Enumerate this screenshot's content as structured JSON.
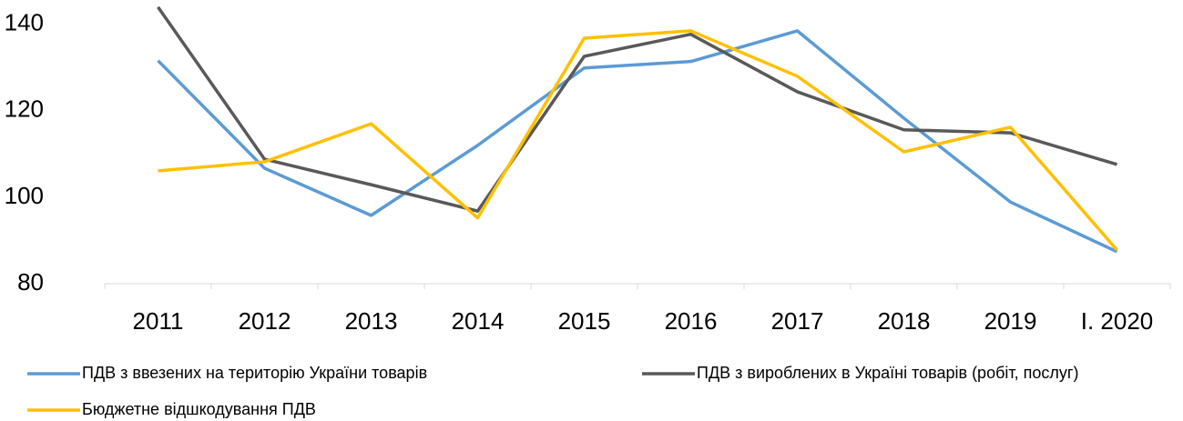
{
  "chart_data": {
    "type": "line",
    "categories": [
      "2011",
      "2012",
      "2013",
      "2014",
      "2015",
      "2016",
      "2017",
      "2018",
      "2019",
      "I. 2020"
    ],
    "series": [
      {
        "name": "ПДВ з ввезених на територію України товарів",
        "color": "#5b9bd5",
        "values": [
          131.6,
          106.7,
          95.8,
          112,
          129.9,
          131.4,
          138.5,
          118.3,
          98.9,
          87.4
        ]
      },
      {
        "name": "ПДВ з вироблених в Україні товарів (робіт, послуг)",
        "color": "#595959",
        "values": [
          144,
          108.8,
          102.9,
          96.8,
          132.6,
          137.7,
          124.4,
          115.6,
          114.9,
          107.6
        ]
      },
      {
        "name": "Бюджетне відшкодування ПДВ",
        "color": "#ffc000",
        "values": [
          106.1,
          108.2,
          117,
          95.2,
          136.8,
          138.5,
          128,
          110.5,
          116.2,
          87.8
        ]
      }
    ],
    "ylim": [
      80,
      145
    ],
    "yticks": [
      80,
      100,
      120,
      140
    ],
    "grid": false
  }
}
